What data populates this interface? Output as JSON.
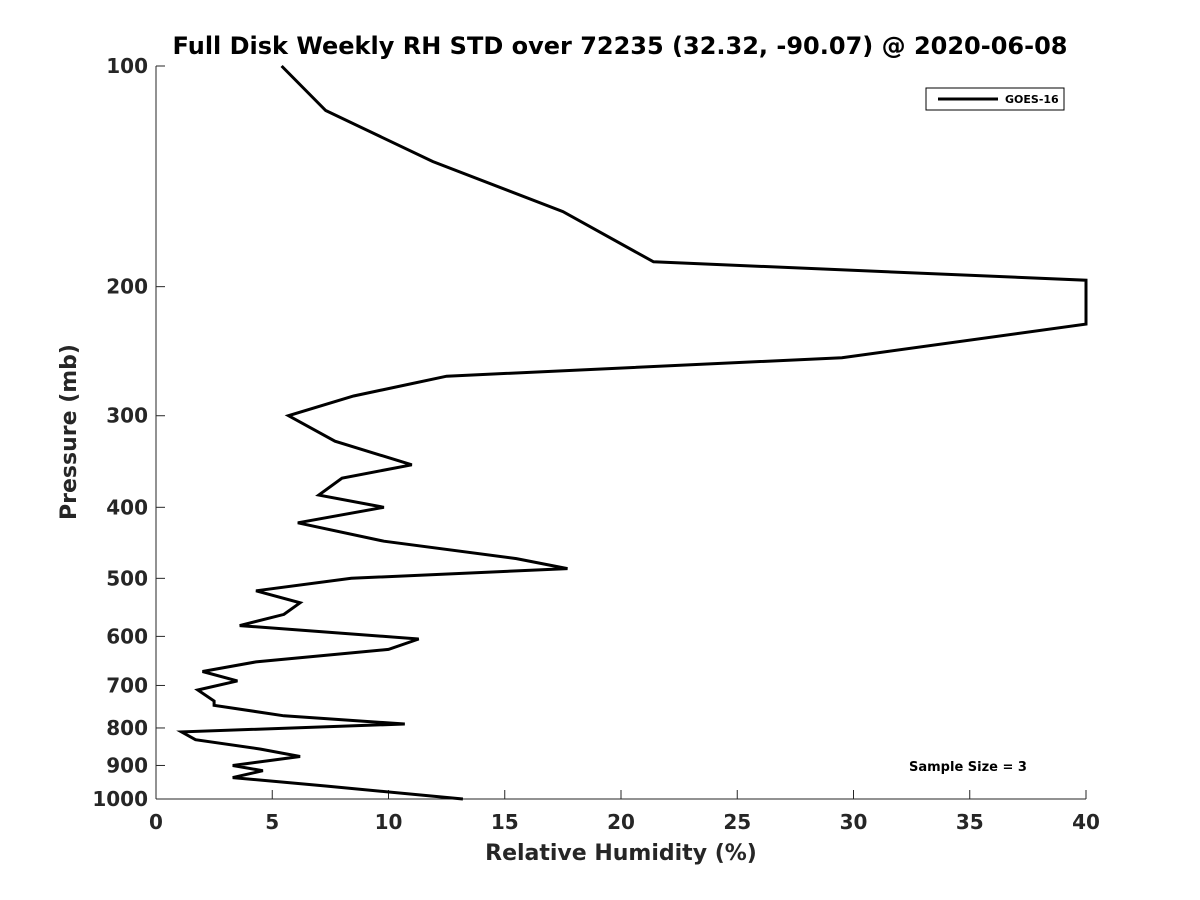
{
  "chart_data": {
    "type": "line",
    "title": "Full Disk Weekly RH STD over 72235 (32.32, -90.07) @ 2020-06-08",
    "xlabel": "Relative Humidity (%)",
    "ylabel": "Pressure (mb)",
    "xlim": [
      0,
      40
    ],
    "ylim": [
      100,
      1000
    ],
    "yscale": "log",
    "y_reversed": true,
    "x_ticks": [
      0,
      5,
      10,
      15,
      20,
      25,
      30,
      35,
      40
    ],
    "y_ticks": [
      100,
      200,
      300,
      400,
      500,
      600,
      700,
      800,
      900,
      1000
    ],
    "legend": {
      "position": "top-right",
      "entries": [
        "GOES-16"
      ]
    },
    "annotation": "Sample Size = 3",
    "series": [
      {
        "name": "GOES-16",
        "color": "#000000",
        "x": [
          5.4,
          7.3,
          11.9,
          17.5,
          21.4,
          40.0,
          40.0,
          29.5,
          12.5,
          8.5,
          5.7,
          7.7,
          11.0,
          8.0,
          7.0,
          9.8,
          6.1,
          9.8,
          15.5,
          17.7,
          8.4,
          4.3,
          6.2,
          5.5,
          3.6,
          11.3,
          10.0,
          4.3,
          2.0,
          3.5,
          1.8,
          2.5,
          2.5,
          5.5,
          10.7,
          1.1,
          1.7,
          4.5,
          6.2,
          3.3,
          4.6,
          3.3,
          7.3,
          13.2
        ],
        "y": [
          100,
          115,
          135,
          158,
          185,
          196,
          225,
          250,
          265,
          282,
          300,
          325,
          350,
          365,
          385,
          400,
          420,
          445,
          470,
          485,
          500,
          520,
          540,
          560,
          580,
          605,
          625,
          650,
          670,
          690,
          710,
          735,
          745,
          770,
          790,
          810,
          830,
          855,
          875,
          900,
          915,
          935,
          960,
          1000
        ]
      }
    ]
  }
}
